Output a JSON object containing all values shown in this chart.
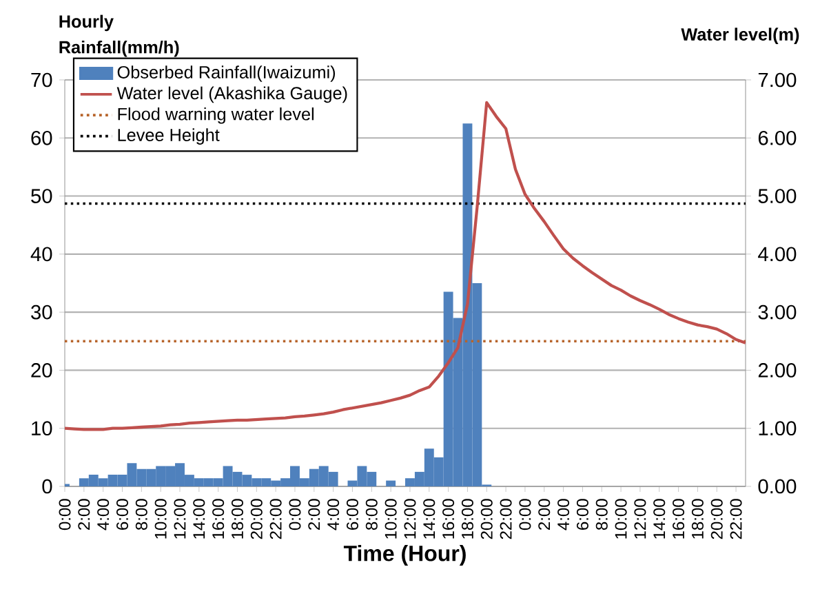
{
  "chart_data": {
    "type": "bar",
    "xlabel": "Time (Hour)",
    "ylabel": "Hourly Rainfall(mm/h)",
    "y2label": "Water level(m)",
    "categories": [
      "0:00",
      null,
      "2:00",
      null,
      "4:00",
      null,
      "6:00",
      null,
      "8:00",
      null,
      "10:00",
      null,
      "12:00",
      null,
      "14:00",
      null,
      "16:00",
      null,
      "18:00",
      null,
      "20:00",
      null,
      "22:00",
      null,
      "0:00",
      null,
      "2:00",
      null,
      "4:00",
      null,
      "6:00",
      null,
      "8:00",
      null,
      "10:00",
      null,
      "12:00",
      null,
      "14:00",
      null,
      "16:00",
      null,
      "18:00",
      null,
      "20:00",
      null,
      "22:00",
      null,
      "0:00",
      null,
      "2:00",
      null,
      "4:00",
      null,
      "6:00",
      null,
      "8:00",
      null,
      "10:00",
      null,
      "12:00",
      null,
      "14:00",
      null,
      "16:00",
      null,
      "18:00",
      null,
      "20:00",
      null,
      "22:00",
      null
    ],
    "series": [
      {
        "name": "Obserbed Rainfall(Iwaizumi)",
        "color": "#4f81bd",
        "values": [
          0.4,
          0,
          1.4,
          2.0,
          1.4,
          2.0,
          2.0,
          4.0,
          3.0,
          3.0,
          3.5,
          3.5,
          4.0,
          2.0,
          1.4,
          1.4,
          1.4,
          3.5,
          2.5,
          2.0,
          1.4,
          1.4,
          1.0,
          1.4,
          3.5,
          1.4,
          3.0,
          3.5,
          2.5,
          0,
          1.0,
          3.5,
          2.5,
          0,
          1.0,
          0,
          1.4,
          2.5,
          6.5,
          5.0,
          33.5,
          29.0,
          62.5,
          35.0,
          0.3,
          0,
          0,
          0,
          0,
          0,
          0,
          0,
          0,
          0,
          0,
          0,
          0,
          0,
          0,
          0,
          0,
          0,
          0,
          0,
          0,
          0,
          0,
          0,
          0,
          0,
          0,
          0
        ]
      },
      {
        "name": "Water level (Akashika Gauge)",
        "type": "line",
        "axis": "y2",
        "color": "#c0504d",
        "values": [
          1.0,
          0.99,
          0.98,
          0.98,
          0.98,
          1.0,
          1.0,
          1.01,
          1.02,
          1.03,
          1.04,
          1.06,
          1.07,
          1.09,
          1.1,
          1.11,
          1.12,
          1.13,
          1.14,
          1.14,
          1.15,
          1.16,
          1.17,
          1.18,
          1.2,
          1.21,
          1.23,
          1.25,
          1.28,
          1.32,
          1.35,
          1.38,
          1.41,
          1.44,
          1.48,
          1.52,
          1.57,
          1.65,
          1.71,
          1.9,
          2.13,
          2.39,
          3.14,
          4.8,
          6.61,
          6.37,
          6.16,
          5.46,
          5.03,
          4.78,
          4.56,
          4.32,
          4.09,
          3.93,
          3.8,
          3.68,
          3.57,
          3.46,
          3.38,
          3.28,
          3.2,
          3.13,
          3.05,
          2.96,
          2.89,
          2.83,
          2.78,
          2.75,
          2.71,
          2.63,
          2.53,
          2.47
        ]
      }
    ],
    "ref_lines": [
      {
        "axis": "y2",
        "value": 2.5,
        "label": "Flood warning water level",
        "color": "#b7642b",
        "line_style": "dotted"
      },
      {
        "axis": "y2",
        "value": 4.87,
        "label": "Levee Height",
        "color": "#000000",
        "line_style": "dotted"
      }
    ],
    "ylim": [
      0,
      70
    ],
    "yticks": [
      0,
      10,
      20,
      30,
      40,
      50,
      60,
      70
    ],
    "y2lim": [
      0,
      7
    ],
    "y2ticks": [
      {
        "value": 0,
        "label": "0.00"
      },
      {
        "value": 1,
        "label": "1.00"
      },
      {
        "value": 2,
        "label": "2.00"
      },
      {
        "value": 3,
        "label": "3.00"
      },
      {
        "value": 4,
        "label": "4.00"
      },
      {
        "value": 5,
        "label": "5.00"
      },
      {
        "value": 6,
        "label": "6.00"
      },
      {
        "value": 7,
        "label": "7.00"
      }
    ],
    "grid": "y",
    "legend": "top left"
  }
}
